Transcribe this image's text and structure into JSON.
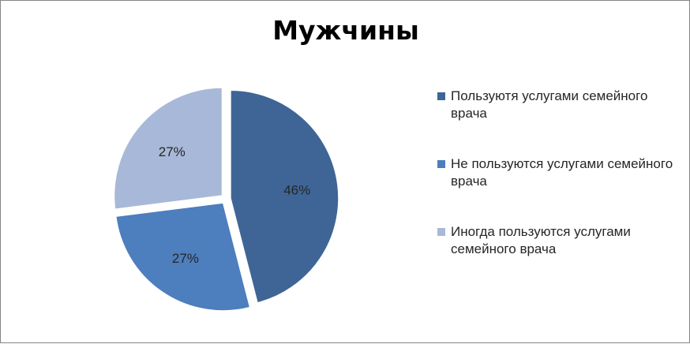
{
  "chart_data": {
    "type": "pie",
    "title": "Мужчины",
    "categories": [
      "Пользуютя услугами семейного врача",
      "Не пользуются услугами семейного врача",
      "Иногда пользуются услугами семейного врача"
    ],
    "values": [
      46,
      27,
      27
    ],
    "data_labels": [
      "46%",
      "27%",
      "27%"
    ],
    "colors": [
      "#3F6597",
      "#4D7EBE",
      "#A8B8D8"
    ],
    "legend_position": "right",
    "exploded": true
  }
}
